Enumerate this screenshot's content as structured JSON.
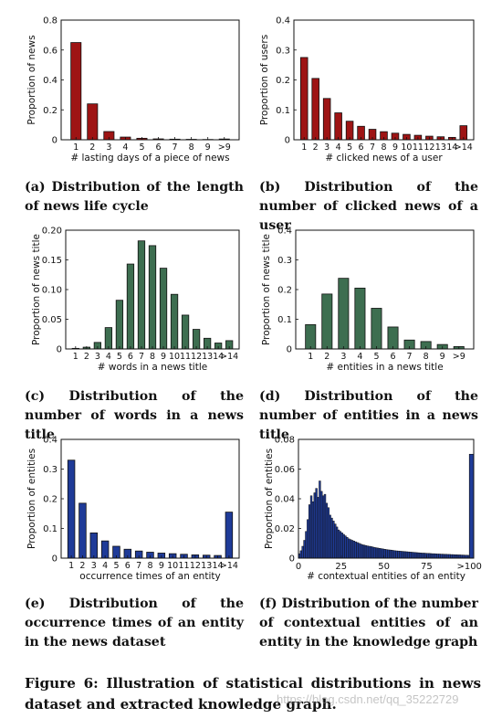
{
  "colors": {
    "red": "#9e1414",
    "blue": "#1f3b98",
    "green": "#3d6e50"
  },
  "panels": [
    {
      "id": "a",
      "caption": "(a) Distribution of the length of news life cycle",
      "chart_data": {
        "type": "bar",
        "color": "red",
        "categories": [
          "1",
          "2",
          "3",
          "4",
          "5",
          "6",
          "7",
          "8",
          "9",
          ">9"
        ],
        "values": [
          0.65,
          0.24,
          0.055,
          0.018,
          0.01,
          0.006,
          0.004,
          0.003,
          0.002,
          0.005
        ],
        "xlabel": "# lasting days of a piece of news",
        "ylabel": "Proportion of news",
        "ylim": [
          0,
          0.8
        ],
        "yticks": [
          0,
          0.2,
          0.4,
          0.6,
          0.8
        ],
        "yticklabels": [
          "0",
          "0.2",
          "0.4",
          "0.6",
          "0.8"
        ]
      }
    },
    {
      "id": "b",
      "caption": "(b) Distribution of the number of clicked news of a user",
      "chart_data": {
        "type": "bar",
        "color": "red",
        "categories": [
          "1",
          "2",
          "3",
          "4",
          "5",
          "6",
          "7",
          "8",
          "9",
          "10",
          "11",
          "12",
          "13",
          "14",
          ">14"
        ],
        "values": [
          0.275,
          0.205,
          0.138,
          0.09,
          0.062,
          0.045,
          0.035,
          0.027,
          0.022,
          0.018,
          0.015,
          0.012,
          0.01,
          0.008,
          0.047
        ],
        "xlabel": "# clicked news of a user",
        "ylabel": "Proportion of users",
        "ylim": [
          0,
          0.4
        ],
        "yticks": [
          0,
          0.1,
          0.2,
          0.3,
          0.4
        ],
        "yticklabels": [
          "0",
          "0.1",
          "0.2",
          "0.3",
          "0.4"
        ]
      }
    },
    {
      "id": "c",
      "caption": "(c) Distribution of the number of words in a news title",
      "chart_data": {
        "type": "bar",
        "color": "green",
        "categories": [
          "1",
          "2",
          "3",
          "4",
          "5",
          "6",
          "7",
          "8",
          "9",
          "10",
          "11",
          "12",
          "13",
          "14",
          ">14"
        ],
        "values": [
          0.001,
          0.003,
          0.011,
          0.036,
          0.082,
          0.143,
          0.182,
          0.174,
          0.136,
          0.092,
          0.057,
          0.033,
          0.018,
          0.01,
          0.014
        ],
        "xlabel": "# words in a news title",
        "ylabel": "Proportion of news title",
        "ylim": [
          0,
          0.2
        ],
        "yticks": [
          0,
          0.05,
          0.1,
          0.15,
          0.2
        ],
        "yticklabels": [
          "0",
          "0.05",
          "0.10",
          "0.15",
          "0.20"
        ]
      }
    },
    {
      "id": "d",
      "caption": "(d) Distribution of the number of entities in a news title",
      "chart_data": {
        "type": "bar",
        "color": "green",
        "categories": [
          "1",
          "2",
          "3",
          "4",
          "5",
          "6",
          "7",
          "8",
          "9",
          ">9"
        ],
        "values": [
          0.082,
          0.185,
          0.238,
          0.205,
          0.137,
          0.074,
          0.03,
          0.025,
          0.015,
          0.008
        ],
        "xlabel": "# entities in a news title",
        "ylabel": "Proportion of news title",
        "ylim": [
          0,
          0.4
        ],
        "yticks": [
          0,
          0.1,
          0.2,
          0.3,
          0.4
        ],
        "yticklabels": [
          "0",
          "0.1",
          "0.2",
          "0.3",
          "0.4"
        ]
      }
    },
    {
      "id": "e",
      "caption": "(e) Distribution of the occurrence times of an entity in the news dataset",
      "chart_data": {
        "type": "bar",
        "color": "blue",
        "categories": [
          "1",
          "2",
          "3",
          "4",
          "5",
          "6",
          "7",
          "8",
          "9",
          "10",
          "11",
          "12",
          "13",
          "14",
          ">14"
        ],
        "values": [
          0.33,
          0.185,
          0.085,
          0.058,
          0.04,
          0.03,
          0.024,
          0.02,
          0.017,
          0.015,
          0.013,
          0.011,
          0.01,
          0.009,
          0.155
        ],
        "xlabel": "occurrence times of an entity",
        "ylabel": "Proportion of entities",
        "ylim": [
          0,
          0.4
        ],
        "yticks": [
          0,
          0.1,
          0.2,
          0.3,
          0.4
        ],
        "yticklabels": [
          "0",
          "0.1",
          "0.2",
          "0.3",
          "0.4"
        ]
      }
    },
    {
      "id": "f",
      "caption": "(f) Distribution of the number of contextual entities of an entity in the knowledge graph",
      "chart_data": {
        "type": "histogram",
        "color": "blue",
        "x_min": 0,
        "x_max": 100,
        "values": [
          0.003,
          0.005,
          0.008,
          0.012,
          0.018,
          0.026,
          0.036,
          0.042,
          0.038,
          0.044,
          0.047,
          0.041,
          0.052,
          0.045,
          0.042,
          0.043,
          0.037,
          0.034,
          0.029,
          0.027,
          0.025,
          0.023,
          0.021,
          0.019,
          0.018,
          0.017,
          0.016,
          0.015,
          0.014,
          0.013,
          0.0125,
          0.012,
          0.0115,
          0.011,
          0.0105,
          0.01,
          0.0095,
          0.009,
          0.0088,
          0.0085,
          0.0082,
          0.008,
          0.0078,
          0.0075,
          0.0072,
          0.007,
          0.0068,
          0.0066,
          0.0064,
          0.0062,
          0.006,
          0.0058,
          0.0056,
          0.0055,
          0.0054,
          0.0052,
          0.005,
          0.0049,
          0.0048,
          0.0047,
          0.0046,
          0.0045,
          0.0044,
          0.0043,
          0.0042,
          0.0041,
          0.004,
          0.0039,
          0.0038,
          0.0037,
          0.0036,
          0.0035,
          0.0034,
          0.0034,
          0.0033,
          0.0032,
          0.0032,
          0.0031,
          0.003,
          0.003,
          0.0029,
          0.0028,
          0.0028,
          0.0027,
          0.0027,
          0.0026,
          0.0026,
          0.0025,
          0.0025,
          0.0024,
          0.0024,
          0.0023,
          0.0023,
          0.0022,
          0.0022,
          0.0021,
          0.0021,
          0.002,
          0.002,
          0.0019
        ],
        "overflow_value": 0.07,
        "xlabel": "# contextual entities of an entity",
        "ylabel": "Proportion of entities",
        "ylim": [
          0,
          0.08
        ],
        "yticks": [
          0,
          0.02,
          0.04,
          0.06,
          0.08
        ],
        "yticklabels": [
          "0",
          "0.02",
          "0.04",
          "0.06",
          "0.08"
        ],
        "xticks": [
          0,
          25,
          50,
          75,
          100
        ],
        "xticklabels": [
          "0",
          "25",
          "50",
          "75",
          ">100"
        ]
      }
    }
  ],
  "figure_caption": "Figure 6: Illustration of statistical distributions in news dataset and extracted knowledge graph.",
  "watermark": "https://blog.csdn.net/qq_35222729"
}
